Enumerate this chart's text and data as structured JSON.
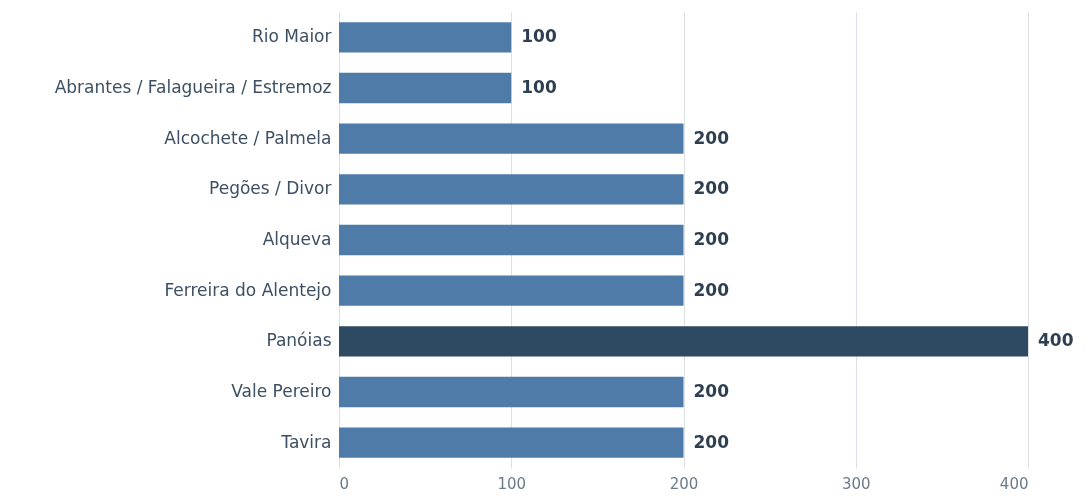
{
  "chart_data": {
    "type": "bar",
    "orientation": "horizontal",
    "categories": [
      "Rio Maior",
      "Abrantes / Falagueira / Estremoz",
      "Alcochete / Palmela",
      "Pegões / Divor",
      "Alqueva",
      "Ferreira do Alentejo",
      "Panóias",
      "Vale Pereiro",
      "Tavira"
    ],
    "values": [
      100,
      100,
      200,
      200,
      200,
      200,
      400,
      200,
      200
    ],
    "colors": [
      "#4e7ba8",
      "#4e7ba8",
      "#4e7ba8",
      "#4e7ba8",
      "#4e7ba8",
      "#4e7ba8",
      "#2e4a62",
      "#4e7ba8",
      "#4e7ba8"
    ],
    "xlim": [
      0,
      400
    ],
    "xticks": [
      0,
      100,
      200,
      300,
      400
    ],
    "grid": "x",
    "data_labels": true
  }
}
